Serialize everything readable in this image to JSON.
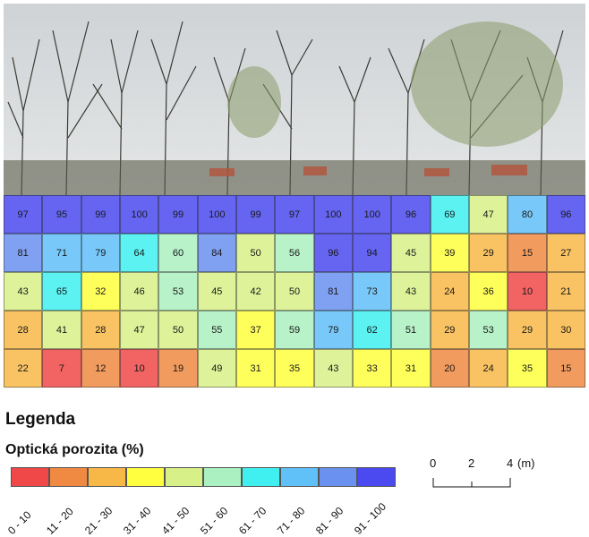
{
  "legend": {
    "title": "Legenda",
    "subtitle": "Optická porozita (%)",
    "classes": [
      {
        "label": "0 - 10",
        "color": "#f04848"
      },
      {
        "label": "11 - 20",
        "color": "#f08a42"
      },
      {
        "label": "21 - 30",
        "color": "#f8b848"
      },
      {
        "label": "31 - 40",
        "color": "#ffff40"
      },
      {
        "label": "41 - 50",
        "color": "#d8f088"
      },
      {
        "label": "51 - 60",
        "color": "#aaf0c0"
      },
      {
        "label": "61 - 70",
        "color": "#40f0f0"
      },
      {
        "label": "71 - 80",
        "color": "#60c0f8"
      },
      {
        "label": "81 - 90",
        "color": "#6a90f0"
      },
      {
        "label": "91 - 100",
        "color": "#4a4af0"
      }
    ]
  },
  "scale": {
    "ticks": [
      "0",
      "2",
      "4"
    ],
    "unit": "(m)"
  },
  "grid": {
    "rows": [
      [
        97,
        95,
        99,
        100,
        99,
        100,
        99,
        97,
        100,
        100,
        96,
        69,
        47,
        80,
        96
      ],
      [
        81,
        71,
        79,
        64,
        60,
        84,
        50,
        56,
        96,
        94,
        45,
        39,
        29,
        15,
        27
      ],
      [
        43,
        65,
        32,
        46,
        53,
        45,
        42,
        50,
        81,
        73,
        43,
        24,
        36,
        10,
        21
      ],
      [
        28,
        41,
        28,
        47,
        50,
        55,
        37,
        59,
        79,
        62,
        51,
        29,
        53,
        29,
        30
      ],
      [
        22,
        7,
        12,
        10,
        19,
        49,
        31,
        35,
        43,
        33,
        31,
        20,
        24,
        35,
        15
      ]
    ]
  }
}
